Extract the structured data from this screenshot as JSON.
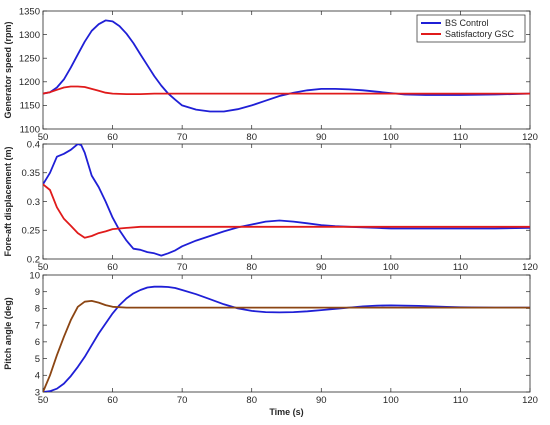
{
  "chart_data": [
    {
      "type": "line",
      "ylabel": "Generator speed (rpm)",
      "xlabel": "",
      "xlim": [
        50,
        120
      ],
      "ylim": [
        1100,
        1350
      ],
      "xticks": [
        "50",
        "60",
        "70",
        "80",
        "90",
        "100",
        "110",
        "120"
      ],
      "yticks": [
        "1100",
        "1150",
        "1200",
        "1250",
        "1300",
        "1350"
      ],
      "grid": false,
      "legend": {
        "placement": "top-right",
        "entries": [
          "BS Control",
          "Satisfactory GSC"
        ]
      },
      "series": [
        {
          "name": "BS Control",
          "color": "#1f1fd6",
          "x": [
            50,
            51,
            52,
            53,
            54,
            55,
            56,
            57,
            58,
            59,
            60,
            61,
            62,
            63,
            64,
            65,
            66,
            67,
            68,
            69,
            70,
            72,
            74,
            76,
            78,
            80,
            82,
            84,
            86,
            88,
            90,
            92,
            94,
            96,
            98,
            100,
            102,
            105,
            110,
            115,
            120
          ],
          "y": [
            1175,
            1178,
            1188,
            1205,
            1230,
            1258,
            1285,
            1308,
            1322,
            1330,
            1328,
            1318,
            1302,
            1282,
            1258,
            1235,
            1212,
            1192,
            1175,
            1162,
            1150,
            1141,
            1137,
            1137,
            1142,
            1150,
            1160,
            1170,
            1177,
            1182,
            1185,
            1185,
            1184,
            1182,
            1179,
            1176,
            1173,
            1172,
            1172,
            1173,
            1175
          ]
        },
        {
          "name": "Satisfactory GSC",
          "color": "#e01b1b",
          "x": [
            50,
            51,
            52,
            53,
            54,
            55,
            56,
            57,
            58,
            59,
            60,
            62,
            64,
            66,
            68,
            70,
            75,
            80,
            85,
            90,
            95,
            100,
            105,
            110,
            115,
            120
          ],
          "y": [
            1175,
            1178,
            1183,
            1188,
            1190,
            1190,
            1189,
            1185,
            1181,
            1177,
            1175,
            1174,
            1174,
            1175,
            1175,
            1175,
            1175,
            1175,
            1175,
            1175,
            1175,
            1175,
            1175,
            1175,
            1175,
            1175
          ]
        }
      ]
    },
    {
      "type": "line",
      "ylabel": "Fore-aft displacement (m)",
      "xlabel": "",
      "xlim": [
        50,
        120
      ],
      "ylim": [
        0.2,
        0.4
      ],
      "xticks": [
        "50",
        "60",
        "70",
        "80",
        "90",
        "100",
        "110",
        "120"
      ],
      "yticks": [
        "0.2",
        "0.25",
        "0.3",
        "0.35",
        "0.4"
      ],
      "grid": false,
      "series": [
        {
          "name": "BS Control",
          "color": "#1f1fd6",
          "x": [
            50,
            51,
            52,
            53,
            54,
            55,
            55.5,
            56,
            57,
            58,
            59,
            60,
            61,
            62,
            63,
            64,
            65,
            66,
            67,
            68,
            69,
            70,
            72,
            74,
            76,
            78,
            80,
            82,
            84,
            86,
            88,
            90,
            92,
            94,
            96,
            98,
            100,
            105,
            110,
            115,
            120
          ],
          "y": [
            0.33,
            0.35,
            0.378,
            0.383,
            0.39,
            0.4,
            0.398,
            0.385,
            0.345,
            0.325,
            0.3,
            0.272,
            0.25,
            0.232,
            0.218,
            0.216,
            0.212,
            0.21,
            0.206,
            0.21,
            0.215,
            0.222,
            0.232,
            0.24,
            0.248,
            0.255,
            0.26,
            0.265,
            0.267,
            0.265,
            0.262,
            0.259,
            0.257,
            0.256,
            0.255,
            0.254,
            0.253,
            0.253,
            0.253,
            0.253,
            0.254
          ]
        },
        {
          "name": "Satisfactory GSC",
          "color": "#e01b1b",
          "x": [
            50,
            51,
            52,
            53,
            54,
            55,
            56,
            57,
            58,
            59,
            60,
            62,
            64,
            66,
            70,
            75,
            80,
            85,
            90,
            95,
            100,
            105,
            110,
            115,
            120
          ],
          "y": [
            0.33,
            0.32,
            0.29,
            0.27,
            0.258,
            0.245,
            0.237,
            0.24,
            0.245,
            0.248,
            0.252,
            0.254,
            0.256,
            0.256,
            0.256,
            0.256,
            0.256,
            0.256,
            0.256,
            0.256,
            0.256,
            0.256,
            0.256,
            0.256,
            0.256
          ]
        }
      ]
    },
    {
      "type": "line",
      "ylabel": "Pitch angle (deg)",
      "xlabel": "Time (s)",
      "xlim": [
        50,
        120
      ],
      "ylim": [
        3,
        10
      ],
      "xticks": [
        "50",
        "60",
        "70",
        "80",
        "90",
        "100",
        "110",
        "120"
      ],
      "yticks": [
        "3",
        "4",
        "5",
        "6",
        "7",
        "8",
        "9",
        "10"
      ],
      "grid": false,
      "series": [
        {
          "name": "BS Control",
          "color": "#1f1fd6",
          "x": [
            50,
            51,
            52,
            53,
            54,
            55,
            56,
            57,
            58,
            59,
            60,
            61,
            62,
            63,
            64,
            65,
            66,
            67,
            68,
            69,
            70,
            72,
            74,
            76,
            78,
            80,
            82,
            84,
            86,
            88,
            90,
            92,
            94,
            96,
            98,
            100,
            102,
            104,
            106,
            108,
            110,
            115,
            120
          ],
          "y": [
            3,
            3.05,
            3.2,
            3.5,
            3.95,
            4.5,
            5.1,
            5.8,
            6.5,
            7.1,
            7.7,
            8.2,
            8.6,
            8.9,
            9.1,
            9.25,
            9.3,
            9.3,
            9.28,
            9.22,
            9.1,
            8.85,
            8.55,
            8.25,
            8.0,
            7.85,
            7.78,
            7.76,
            7.78,
            7.83,
            7.9,
            7.97,
            8.05,
            8.12,
            8.17,
            8.18,
            8.17,
            8.15,
            8.12,
            8.09,
            8.07,
            8.05,
            8.05
          ]
        },
        {
          "name": "Satisfactory GSC",
          "color": "#8b4513",
          "x": [
            50,
            51,
            52,
            53,
            54,
            55,
            56,
            57,
            58,
            59,
            60,
            62,
            64,
            66,
            70,
            75,
            80,
            85,
            90,
            95,
            100,
            105,
            110,
            115,
            120
          ],
          "y": [
            3,
            4.0,
            5.2,
            6.3,
            7.3,
            8.1,
            8.4,
            8.45,
            8.35,
            8.2,
            8.1,
            8.05,
            8.05,
            8.05,
            8.05,
            8.05,
            8.05,
            8.05,
            8.05,
            8.05,
            8.05,
            8.05,
            8.05,
            8.05,
            8.05
          ]
        }
      ]
    }
  ]
}
